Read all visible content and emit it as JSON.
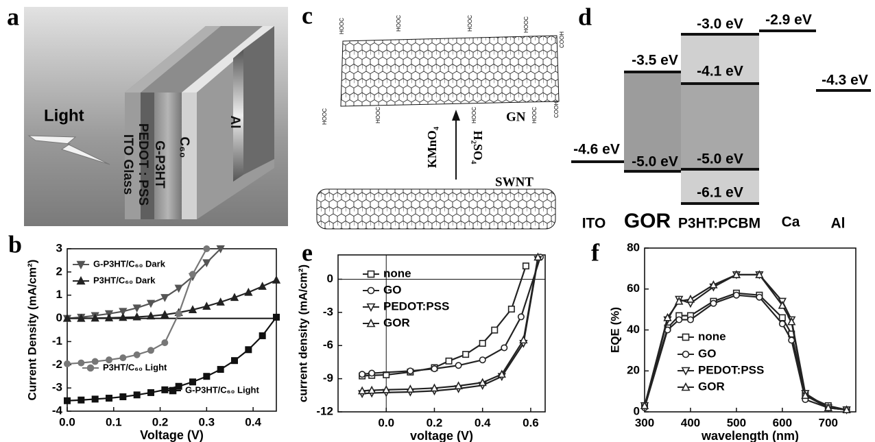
{
  "panel_a": {
    "letter": "a",
    "labels": [
      "Light",
      "ITO Glass",
      "PEDOT : PSS",
      "G-P3HT",
      "C₆₀",
      "Al"
    ]
  },
  "panel_c": {
    "letter": "c",
    "sheet": "GN",
    "tube": "SWNT",
    "reagent_1": "KMnO₄",
    "reagent_2": "H₂SO₄",
    "acid_labels": [
      "HOOC",
      "HOOC",
      "HOOC",
      "HOOC",
      "COOH",
      "HOOC",
      "HOOC",
      "HOOC",
      "HOOC",
      "COOH"
    ]
  },
  "panel_d": {
    "letter": "d",
    "levels": [
      "-4.6 eV",
      "-3.5 eV",
      "-5.0 eV",
      "-3.0 eV",
      "-4.1 eV",
      "-5.0 eV",
      "-6.1 eV",
      "-2.9 eV",
      "-4.3 eV"
    ],
    "materials": [
      "ITO",
      "GOR",
      "P3HT:PCBM",
      "Ca",
      "Al"
    ]
  },
  "chart_data": [
    {
      "type": "line",
      "letter": "b",
      "x_label": "Voltage (V)",
      "y_label": "Current Density (mA/cm²)",
      "xlim": [
        0,
        0.45
      ],
      "ylim": [
        -4,
        3
      ],
      "xticks": [
        {
          "value": 0,
          "label": "0.0"
        },
        0.1,
        0.2,
        0.3,
        0.4
      ],
      "yticks": [
        -4,
        -3,
        -2,
        -1,
        0,
        1,
        2,
        3
      ],
      "zero_line_y": true,
      "zero_line_x": false,
      "open_markers": false,
      "series": [
        {
          "name": "G-P3HT/C₆₀ Dark",
          "color": "#555555",
          "marker": "triangle-down",
          "x": [
            0,
            0.03,
            0.06,
            0.09,
            0.12,
            0.15,
            0.18,
            0.21,
            0.24,
            0.27,
            0.3,
            0.33
          ],
          "values": [
            0,
            0.05,
            0.12,
            0.2,
            0.3,
            0.45,
            0.65,
            0.9,
            1.3,
            1.8,
            2.4,
            3.0
          ]
        },
        {
          "name": "P3HT/C₆₀ Dark",
          "color": "#222222",
          "marker": "triangle-up",
          "x": [
            0,
            0.03,
            0.06,
            0.09,
            0.12,
            0.15,
            0.18,
            0.21,
            0.24,
            0.27,
            0.3,
            0.33,
            0.36,
            0.39,
            0.42,
            0.45
          ],
          "values": [
            0,
            0,
            0.01,
            0.02,
            0.04,
            0.06,
            0.1,
            0.16,
            0.25,
            0.37,
            0.52,
            0.7,
            0.9,
            1.12,
            1.38,
            1.65
          ]
        },
        {
          "name": "P3HT/C₆₀ Light",
          "color": "#777777",
          "marker": "circle",
          "x": [
            0,
            0.03,
            0.06,
            0.09,
            0.12,
            0.15,
            0.18,
            0.21,
            0.24,
            0.27,
            0.3
          ],
          "values": [
            -1.96,
            -1.92,
            -1.86,
            -1.79,
            -1.7,
            -1.57,
            -1.38,
            -1.05,
            0.2,
            1.9,
            3.0
          ]
        },
        {
          "name": "G-P3HT/C₆₀ Light",
          "color": "#111111",
          "marker": "square",
          "x": [
            0,
            0.03,
            0.06,
            0.09,
            0.12,
            0.15,
            0.18,
            0.21,
            0.24,
            0.27,
            0.3,
            0.33,
            0.36,
            0.39,
            0.42,
            0.45
          ],
          "values": [
            -3.55,
            -3.52,
            -3.48,
            -3.44,
            -3.38,
            -3.3,
            -3.2,
            -3.08,
            -2.93,
            -2.74,
            -2.5,
            -2.2,
            -1.82,
            -1.35,
            -0.75,
            0.05
          ]
        }
      ]
    },
    {
      "type": "line",
      "letter": "e",
      "x_label": "voltage (V)",
      "y_label": "current density (mA/cm²)",
      "xlim": [
        -0.2,
        0.66
      ],
      "ylim": [
        -12,
        2.2
      ],
      "xticks": [
        {
          "value": 0,
          "label": "0.0"
        },
        0.2,
        0.4,
        0.6
      ],
      "yticks": [
        -12,
        -9,
        -6,
        -3,
        0
      ],
      "zero_line_y": true,
      "zero_line_x": true,
      "open_markers": true,
      "series": [
        {
          "name": "none",
          "color": "#222222",
          "marker": "square",
          "x": [
            -0.1,
            -0.06,
            0.0,
            0.1,
            0.2,
            0.26,
            0.33,
            0.4,
            0.45,
            0.52,
            0.58
          ],
          "values": [
            -8.75,
            -8.7,
            -8.65,
            -8.4,
            -8.0,
            -7.4,
            -6.8,
            -5.8,
            -4.6,
            -2.7,
            1.2
          ]
        },
        {
          "name": "GO",
          "color": "#222222",
          "marker": "circle",
          "x": [
            -0.1,
            -0.06,
            0.1,
            0.2,
            0.3,
            0.4,
            0.49,
            0.56,
            0.64
          ],
          "values": [
            -8.6,
            -8.5,
            -8.3,
            -8.1,
            -7.8,
            -7.3,
            -6.2,
            -3.4,
            2.0
          ]
        },
        {
          "name": "PEDOT:PSS",
          "color": "#222222",
          "marker": "triangle-down",
          "x": [
            -0.1,
            -0.06,
            0.0,
            0.1,
            0.2,
            0.3,
            0.4,
            0.48,
            0.57,
            0.63
          ],
          "values": [
            -10.35,
            -10.3,
            -10.25,
            -10.2,
            -10.1,
            -9.9,
            -9.6,
            -8.8,
            -5.8,
            1.8
          ]
        },
        {
          "name": "GOR",
          "color": "#222222",
          "marker": "triangle-up",
          "x": [
            -0.1,
            -0.06,
            0.0,
            0.1,
            0.2,
            0.3,
            0.4,
            0.48,
            0.57,
            0.63
          ],
          "values": [
            -10.1,
            -10.05,
            -10.0,
            -9.95,
            -9.85,
            -9.65,
            -9.35,
            -8.6,
            -5.5,
            2.0
          ]
        }
      ]
    },
    {
      "type": "line",
      "letter": "f",
      "x_label": "wavelength (nm)",
      "y_label": "EQE (%)",
      "xlim": [
        300,
        760
      ],
      "ylim": [
        0,
        80
      ],
      "xticks": [
        300,
        400,
        500,
        600,
        700
      ],
      "yticks": [
        0,
        20,
        40,
        60,
        80
      ],
      "zero_line_y": false,
      "zero_line_x": false,
      "open_markers": true,
      "series": [
        {
          "name": "none",
          "color": "#222222",
          "marker": "square",
          "x": [
            300,
            350,
            375,
            400,
            450,
            500,
            550,
            600,
            620,
            650,
            700,
            740
          ],
          "values": [
            3,
            41,
            47,
            47,
            54,
            58,
            57,
            46,
            38,
            8,
            3,
            1
          ]
        },
        {
          "name": "GO",
          "color": "#222222",
          "marker": "circle",
          "x": [
            300,
            350,
            375,
            400,
            450,
            500,
            550,
            600,
            620,
            650,
            700,
            740
          ],
          "values": [
            2,
            40,
            45,
            45,
            53,
            57,
            56,
            43,
            35,
            6,
            2,
            1
          ]
        },
        {
          "name": "PEDOT:PSS",
          "color": "#222222",
          "marker": "triangle-down",
          "x": [
            300,
            350,
            375,
            400,
            450,
            500,
            550,
            600,
            620,
            650,
            700,
            740
          ],
          "values": [
            3,
            45,
            55,
            53,
            61,
            67,
            67,
            54,
            45,
            9,
            2,
            1
          ]
        },
        {
          "name": "GOR",
          "color": "#222222",
          "marker": "triangle-up",
          "x": [
            300,
            350,
            375,
            400,
            450,
            500,
            550,
            600,
            620,
            650,
            700,
            740
          ],
          "values": [
            3,
            46,
            54,
            55,
            62,
            67,
            67,
            52,
            44,
            8,
            2,
            1
          ]
        }
      ]
    }
  ]
}
